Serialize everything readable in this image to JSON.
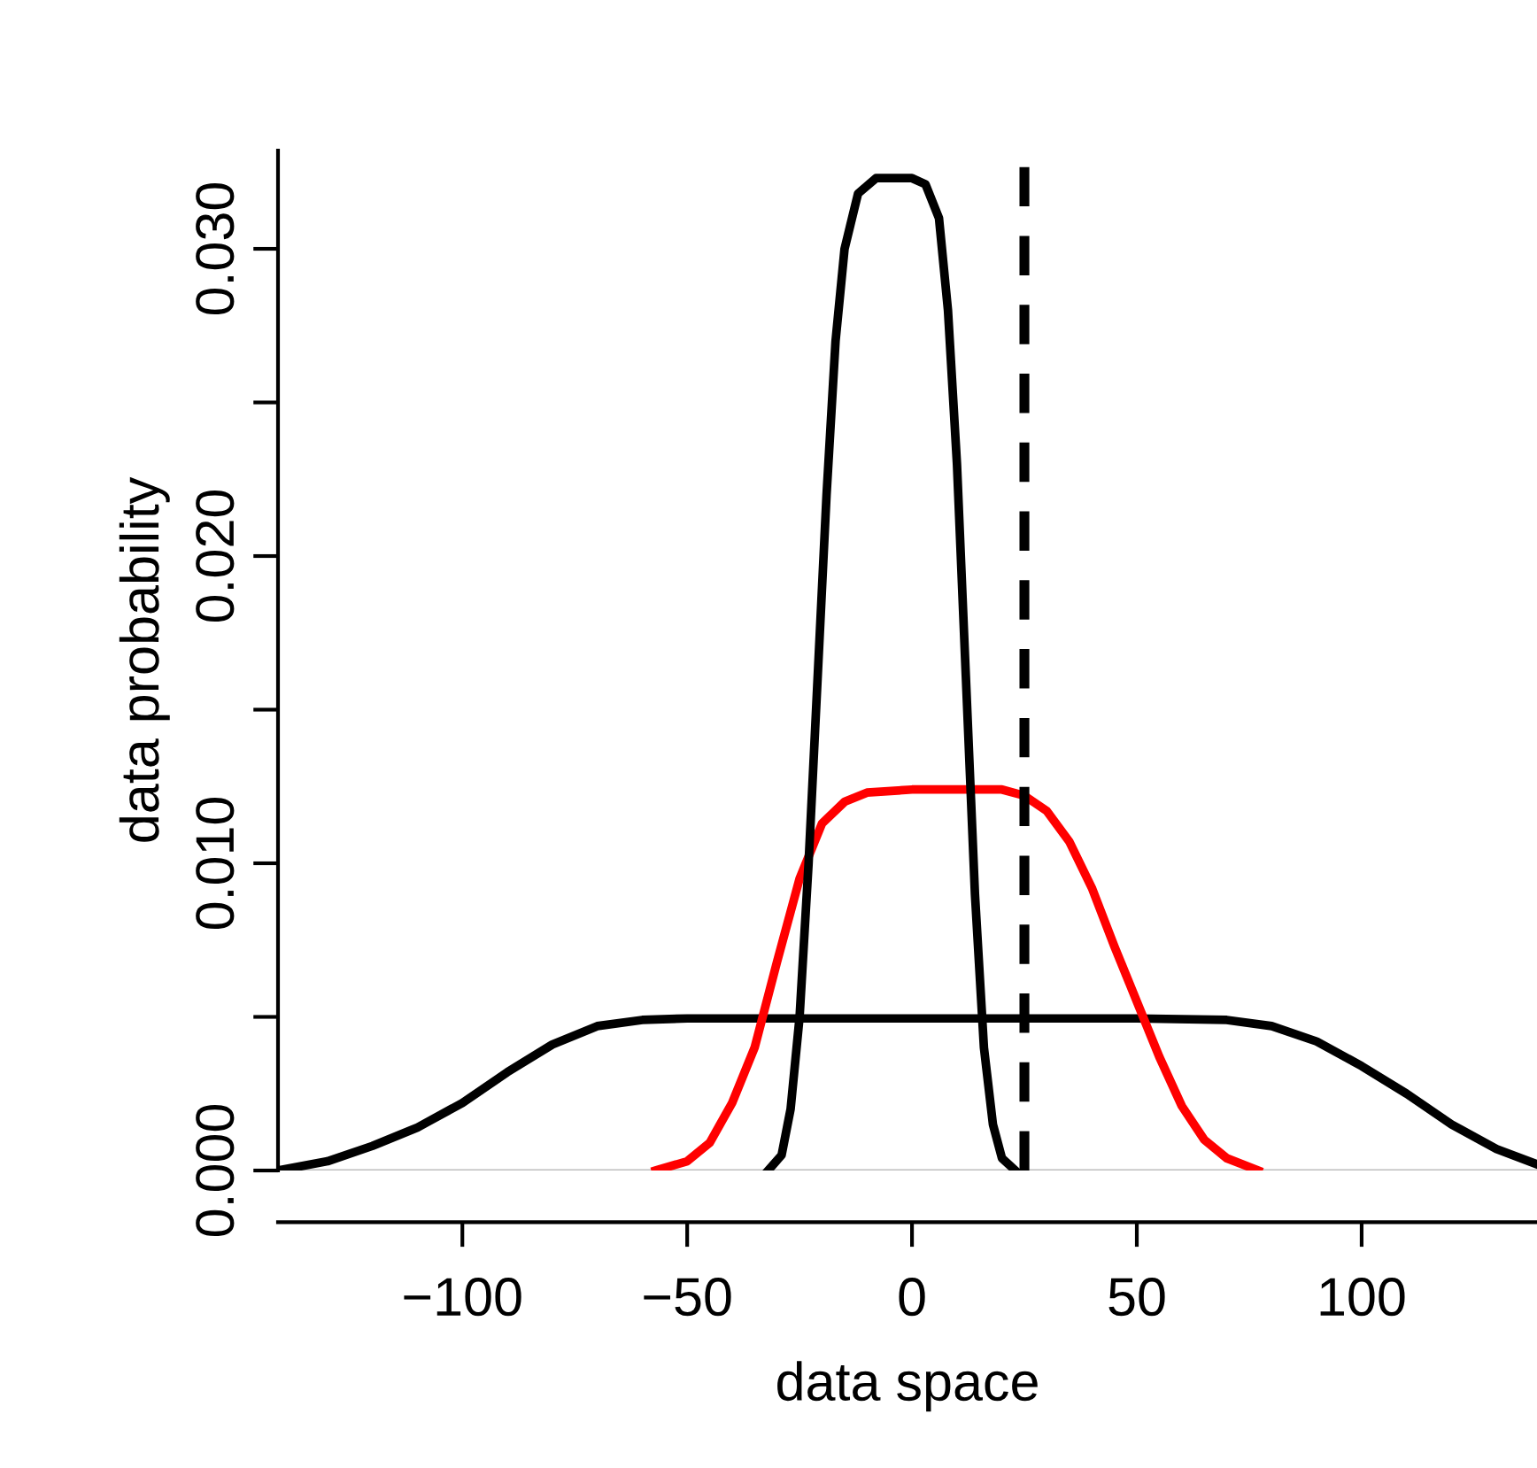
{
  "chart_data": {
    "type": "line",
    "xlabel": "data space",
    "ylabel": "data probability",
    "xlim": [
      -141,
      139
    ],
    "ylim": [
      0,
      0.0332
    ],
    "xticks": [
      {
        "value": -100,
        "label": "−100"
      },
      {
        "value": -50,
        "label": "−50"
      },
      0,
      50,
      100
    ],
    "yticks": [
      {
        "value": 0,
        "label": "0.000"
      },
      {
        "value": 0.005,
        "label": null
      },
      {
        "value": 0.01,
        "label": "0.010"
      },
      {
        "value": 0.015,
        "label": null
      },
      {
        "value": 0.02,
        "label": "0.020"
      },
      {
        "value": 0.025,
        "label": null
      },
      {
        "value": 0.03,
        "label": "0.030"
      }
    ],
    "grid": false,
    "line_style": "solid",
    "marker": "none",
    "series": [
      {
        "color": "#000000",
        "x": [
          -141,
          -130,
          -120,
          -110,
          -100,
          -90,
          -80,
          -70,
          -60,
          -50,
          0,
          50,
          70,
          80,
          90,
          100,
          110,
          120,
          130,
          139
        ],
        "values": [
          0,
          0.0003,
          0.0008,
          0.0014,
          0.0022,
          0.0032,
          0.0041,
          0.0047,
          0.0049,
          0.00495,
          0.00495,
          0.00495,
          0.0049,
          0.0047,
          0.0042,
          0.0034,
          0.0025,
          0.0015,
          0.0007,
          0.0002
        ]
      },
      {
        "color": "#ff0000",
        "x": [
          -57,
          -50,
          -45,
          -40,
          -35,
          -30,
          -25,
          -20,
          -15,
          -10,
          0,
          20,
          25,
          30,
          35,
          40,
          45,
          50,
          55,
          60,
          65,
          70,
          77
        ],
        "values": [
          0,
          0.0003,
          0.0009,
          0.0022,
          0.004,
          0.0068,
          0.0095,
          0.0113,
          0.012,
          0.0123,
          0.0124,
          0.0124,
          0.0122,
          0.0117,
          0.0107,
          0.0092,
          0.0073,
          0.0055,
          0.0037,
          0.0021,
          0.001,
          0.0004,
          0
        ]
      },
      {
        "color": "#000000",
        "x": [
          -32,
          -29,
          -27,
          -25,
          -23,
          -21,
          -19,
          -17,
          -15,
          -12,
          -8,
          0,
          3,
          6,
          8,
          10,
          12,
          14,
          16,
          18,
          20,
          23
        ],
        "values": [
          0,
          0.0005,
          0.002,
          0.005,
          0.01,
          0.016,
          0.022,
          0.027,
          0.03,
          0.0318,
          0.0323,
          0.0323,
          0.0321,
          0.031,
          0.028,
          0.023,
          0.016,
          0.009,
          0.004,
          0.0015,
          0.0004,
          0
        ]
      }
    ],
    "ref_lines": [
      {
        "axis": "x",
        "value": 25,
        "color": "#000000",
        "line_style": "dashed"
      },
      {
        "axis": "y",
        "value": 0,
        "color": "#bebebe",
        "line_style": "solid"
      }
    ]
  }
}
